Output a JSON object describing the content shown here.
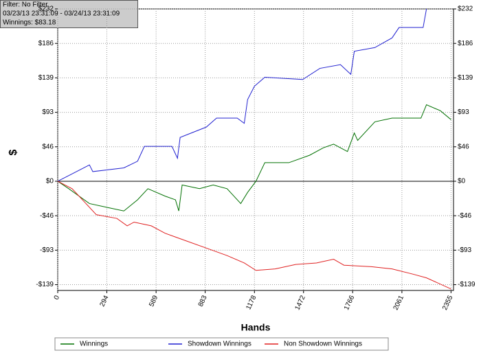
{
  "chart_data": {
    "type": "line",
    "info": [
      "Filter: No Filter",
      "03/23/13 23:31:09 - 03/24/13 23:31:09",
      "Winnings: $83.18"
    ],
    "x_label": "Hands",
    "y_label": "$",
    "xlim": [
      0,
      2370
    ],
    "ylim": [
      -147,
      232
    ],
    "xticks": [
      0,
      294,
      589,
      883,
      1178,
      1472,
      1766,
      2061,
      2355
    ],
    "yticks": [
      {
        "value": -139.2,
        "label": "-$139"
      },
      {
        "value": -92.8,
        "label": "-$93"
      },
      {
        "value": -46.4,
        "label": "-$46"
      },
      {
        "value": 0,
        "label": "$0"
      },
      {
        "value": 46.4,
        "label": "$46"
      },
      {
        "value": 92.8,
        "label": "$93"
      },
      {
        "value": 139.2,
        "label": "$139"
      },
      {
        "value": 185.6,
        "label": "$186"
      },
      {
        "value": 232,
        "label": "$232"
      }
    ],
    "grid": true,
    "series": [
      {
        "name": "Winnings",
        "color": "#007000",
        "x": [
          0,
          66,
          190,
          293,
          396,
          478,
          540,
          643,
          705,
          725,
          745,
          849,
          931,
          1014,
          1096,
          1137,
          1187,
          1240,
          1384,
          1508,
          1590,
          1652,
          1735,
          1776,
          1796,
          1899,
          2002,
          2175,
          2208,
          2291,
          2355
        ],
        "values": [
          0,
          -10,
          -30,
          -35,
          -40,
          -25,
          -10,
          -20,
          -25,
          -40,
          -5,
          -10,
          -5,
          -10,
          -30,
          -15,
          0,
          25,
          25,
          35,
          45,
          50,
          40,
          65,
          55,
          80,
          85,
          85,
          103,
          95,
          83
        ]
      },
      {
        "name": "Showdown Winnings",
        "color": "#2020d0",
        "x": [
          0,
          190,
          210,
          396,
          478,
          519,
          684,
          717,
          733,
          890,
          951,
          1075,
          1117,
          1137,
          1178,
          1240,
          1467,
          1570,
          1693,
          1755,
          1776,
          1899,
          2002,
          2044,
          2188,
          2208
        ],
        "values": [
          0,
          22,
          13,
          18,
          27,
          47,
          47,
          31,
          59,
          73,
          85,
          85,
          78,
          110,
          128,
          140,
          137,
          152,
          157,
          144,
          175,
          180,
          193,
          207,
          207,
          232
        ]
      },
      {
        "name": "Non Showdown Winnings",
        "color": "#e02020",
        "x": [
          0,
          86,
          169,
          231,
          354,
          416,
          457,
          560,
          643,
          766,
          890,
          1014,
          1117,
          1187,
          1302,
          1425,
          1549,
          1652,
          1714,
          1878,
          2002,
          2126,
          2208,
          2355
        ],
        "values": [
          0,
          -10,
          -30,
          -45,
          -50,
          -60,
          -55,
          -60,
          -70,
          -80,
          -90,
          -100,
          -110,
          -120,
          -118,
          -112,
          -110,
          -105,
          -113,
          -115,
          -118,
          -125,
          -130,
          -145
        ]
      }
    ]
  }
}
